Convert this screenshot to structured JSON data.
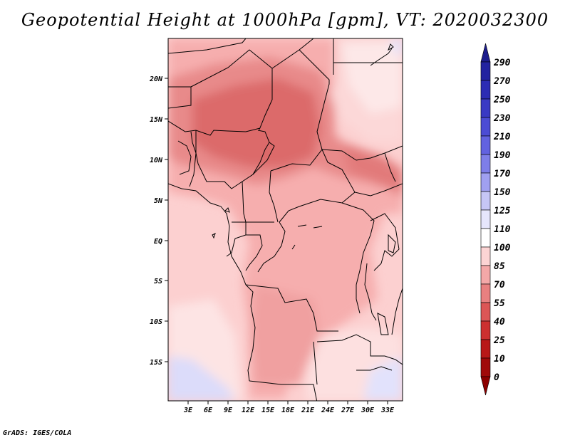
{
  "title": "Geopotential Height at 1000hPa [gpm], VT: 2020032300",
  "footer": "GrADS: IGES/COLA",
  "map": {
    "lat_labels": [
      "20N",
      "15N",
      "10N",
      "5N",
      "EQ",
      "5S",
      "10S",
      "15S"
    ],
    "lon_labels": [
      "3E",
      "6E",
      "9E",
      "12E",
      "15E",
      "18E",
      "21E",
      "24E",
      "27E",
      "30E",
      "33E"
    ]
  },
  "colorbar": {
    "levels": [
      "290",
      "270",
      "250",
      "230",
      "210",
      "190",
      "170",
      "150",
      "125",
      "110",
      "100",
      "85",
      "70",
      "55",
      "40",
      "25",
      "10",
      "0"
    ],
    "colors": [
      "#1c1c8c",
      "#2222a0",
      "#2c2cb4",
      "#3a3ac4",
      "#4c4cd4",
      "#6262e0",
      "#7e7ee8",
      "#a0a0f0",
      "#c6c6f6",
      "#e6e6fc",
      "#ffffff",
      "#fcd4d4",
      "#f4a8a8",
      "#e88080",
      "#dc5656",
      "#cc3030",
      "#b81818",
      "#a00a0a",
      "#8c0000"
    ]
  }
}
